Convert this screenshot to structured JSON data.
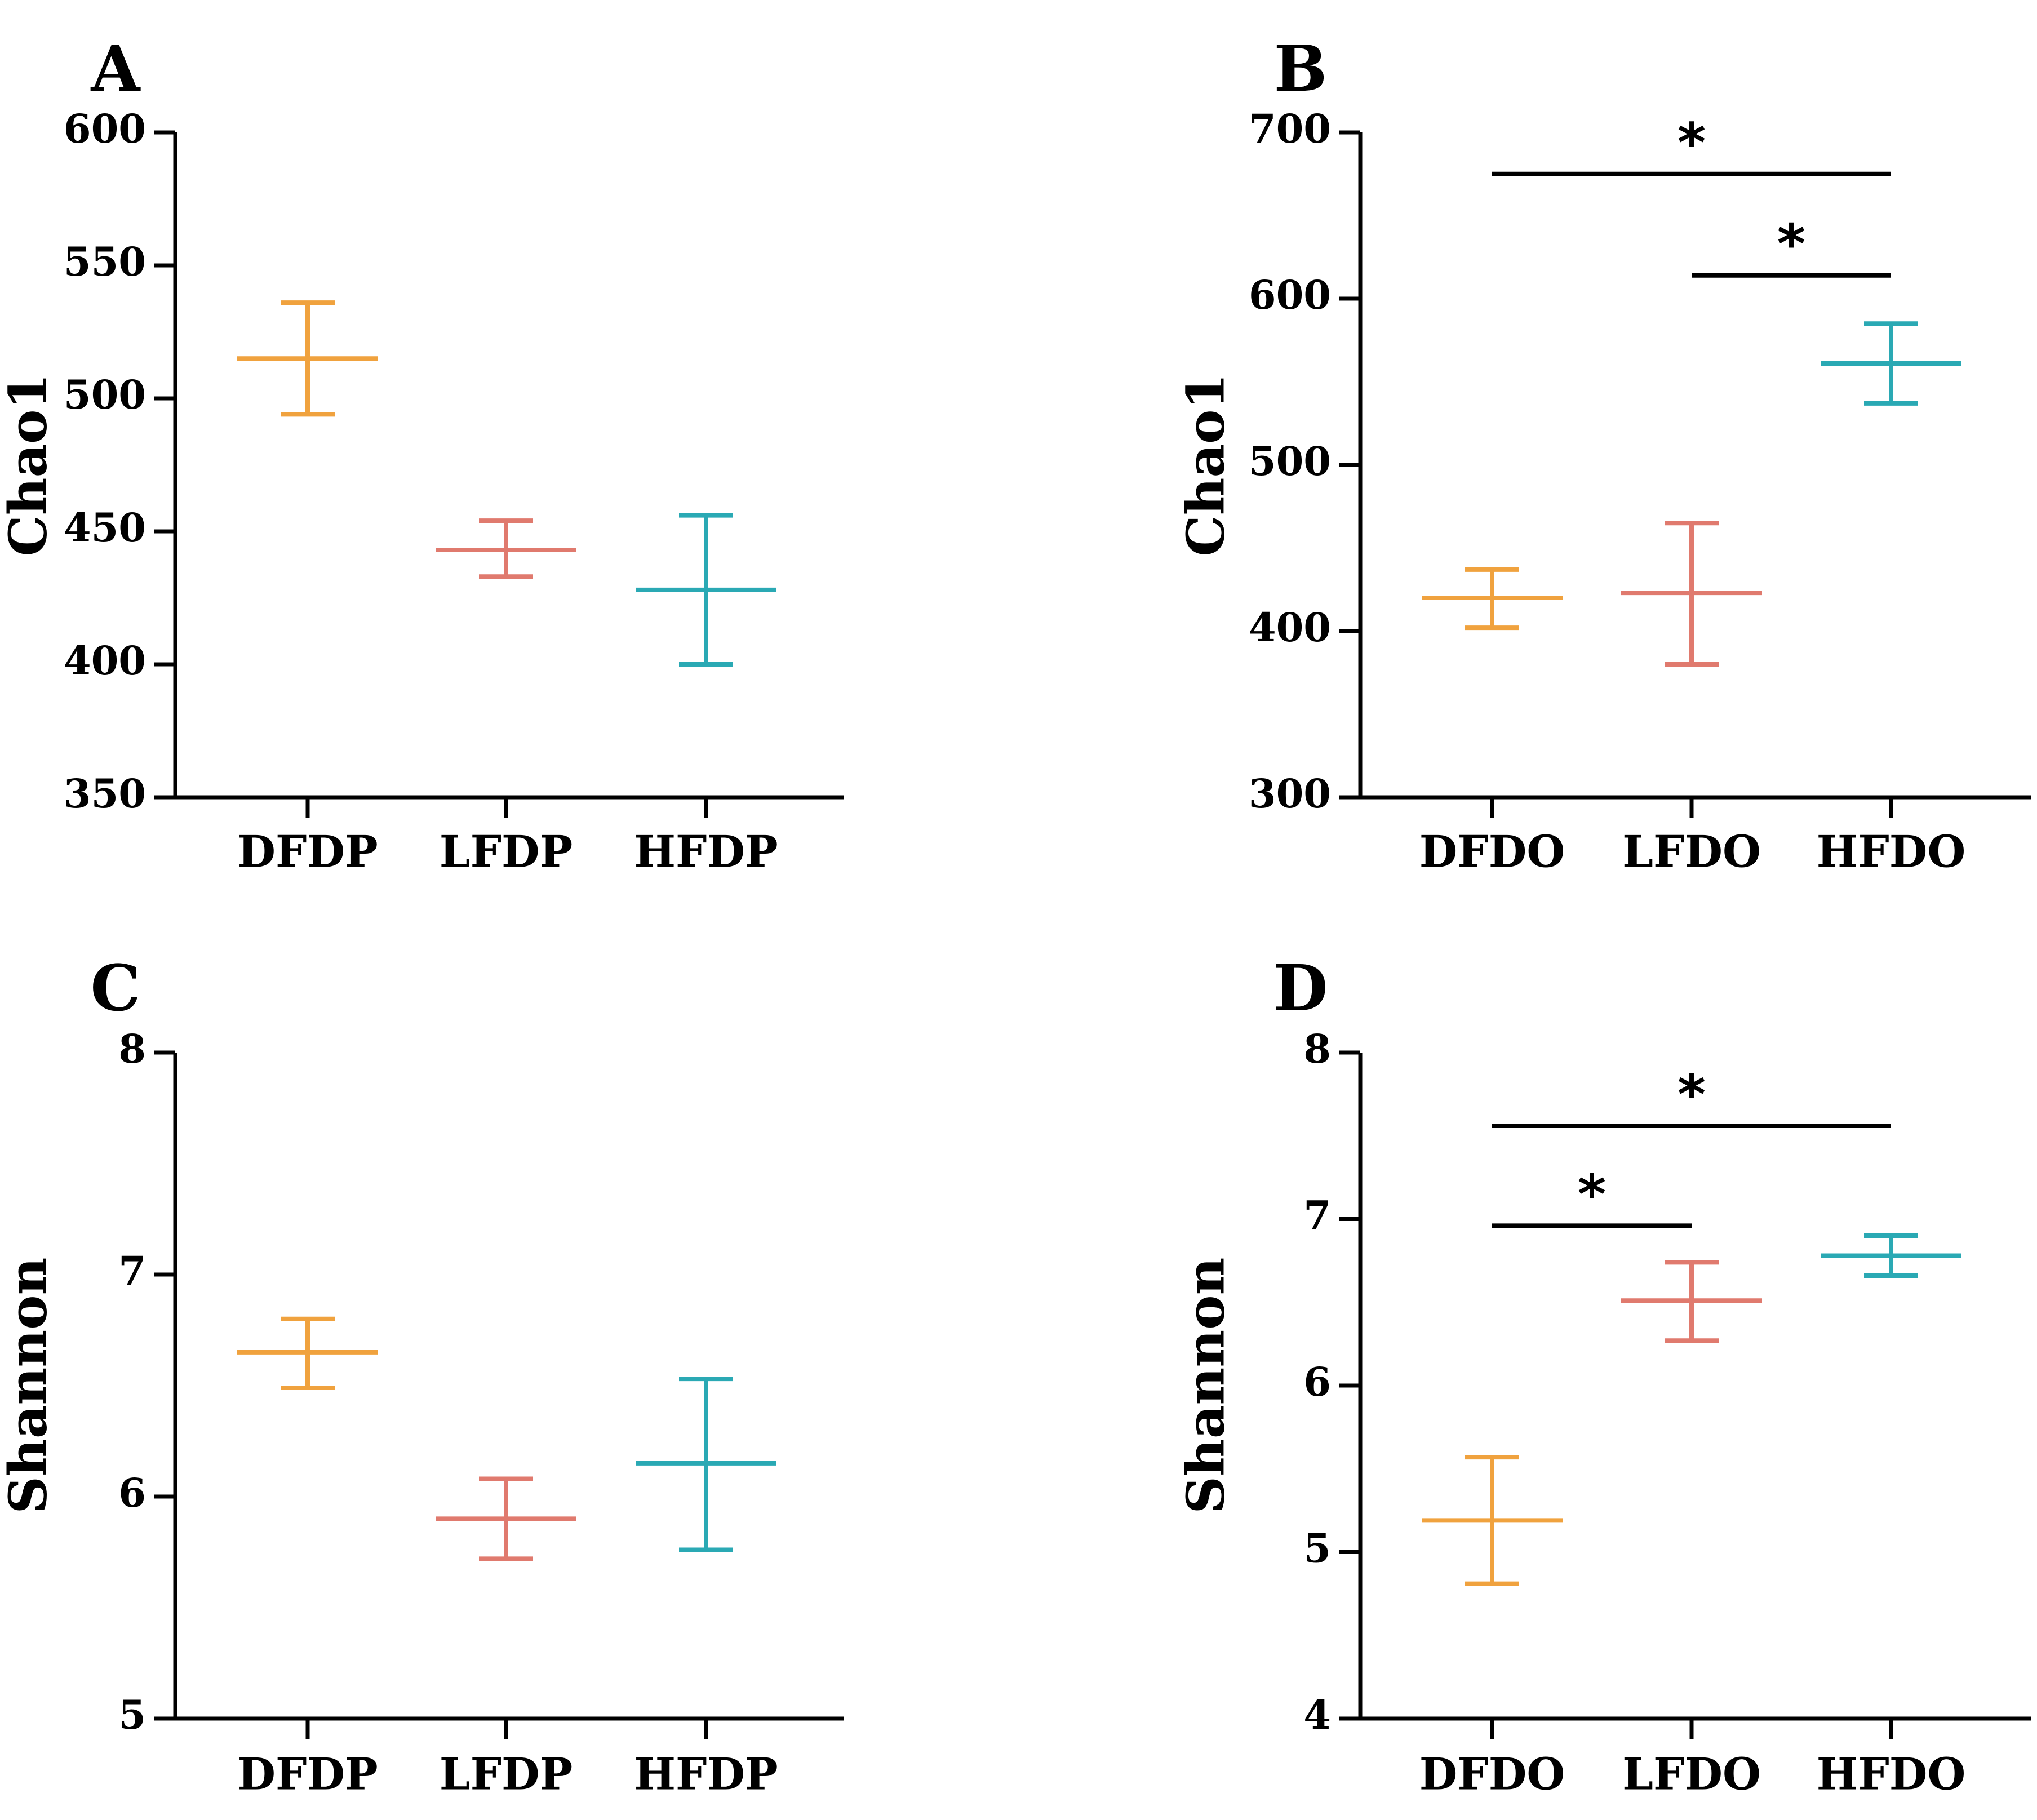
{
  "chart_data": [
    {
      "panel": "A",
      "type": "errorbar",
      "ylabel": "Chao1",
      "xlabel": "",
      "ylim": [
        350,
        600
      ],
      "yticks": [
        350,
        400,
        450,
        500,
        550,
        600
      ],
      "categories": [
        "DFDP",
        "LFDP",
        "HFDP"
      ],
      "colors": [
        "#F0A23E",
        "#E07A6E",
        "#2AA9B4"
      ],
      "mean": [
        515,
        443,
        428
      ],
      "lower": [
        494,
        433,
        400
      ],
      "upper": [
        536,
        454,
        456
      ],
      "significance": []
    },
    {
      "panel": "B",
      "type": "errorbar",
      "ylabel": "Chao1",
      "xlabel": "",
      "ylim": [
        300,
        700
      ],
      "yticks": [
        300,
        400,
        500,
        600,
        700
      ],
      "categories": [
        "DFDO",
        "LFDO",
        "HFDO"
      ],
      "colors": [
        "#F0A23E",
        "#E07A6E",
        "#2AA9B4"
      ],
      "mean": [
        420,
        423,
        561
      ],
      "lower": [
        402,
        380,
        537
      ],
      "upper": [
        437,
        465,
        585
      ],
      "significance": [
        {
          "from": 0,
          "to": 2,
          "level": 675,
          "label": "*"
        },
        {
          "from": 1,
          "to": 2,
          "level": 614,
          "label": "*"
        }
      ]
    },
    {
      "panel": "C",
      "type": "errorbar",
      "ylabel": "Shannon",
      "xlabel": "",
      "ylim": [
        5,
        8
      ],
      "yticks": [
        5,
        6,
        7,
        8
      ],
      "categories": [
        "DFDP",
        "LFDP",
        "HFDP"
      ],
      "colors": [
        "#F0A23E",
        "#E07A6E",
        "#2AA9B4"
      ],
      "mean": [
        6.65,
        5.9,
        6.15
      ],
      "lower": [
        6.49,
        5.72,
        5.76
      ],
      "upper": [
        6.8,
        6.08,
        6.53
      ],
      "significance": []
    },
    {
      "panel": "D",
      "type": "errorbar",
      "ylabel": "Shannon",
      "xlabel": "",
      "ylim": [
        4,
        8
      ],
      "yticks": [
        4,
        5,
        6,
        7,
        8
      ],
      "categories": [
        "DFDO",
        "LFDO",
        "HFDO"
      ],
      "colors": [
        "#F0A23E",
        "#E07A6E",
        "#2AA9B4"
      ],
      "mean": [
        5.19,
        6.51,
        6.78
      ],
      "lower": [
        4.81,
        6.27,
        6.66
      ],
      "upper": [
        5.57,
        6.74,
        6.9
      ],
      "significance": [
        {
          "from": 0,
          "to": 2,
          "level": 7.56,
          "label": "*"
        },
        {
          "from": 0,
          "to": 1,
          "level": 6.96,
          "label": "*"
        }
      ]
    }
  ]
}
